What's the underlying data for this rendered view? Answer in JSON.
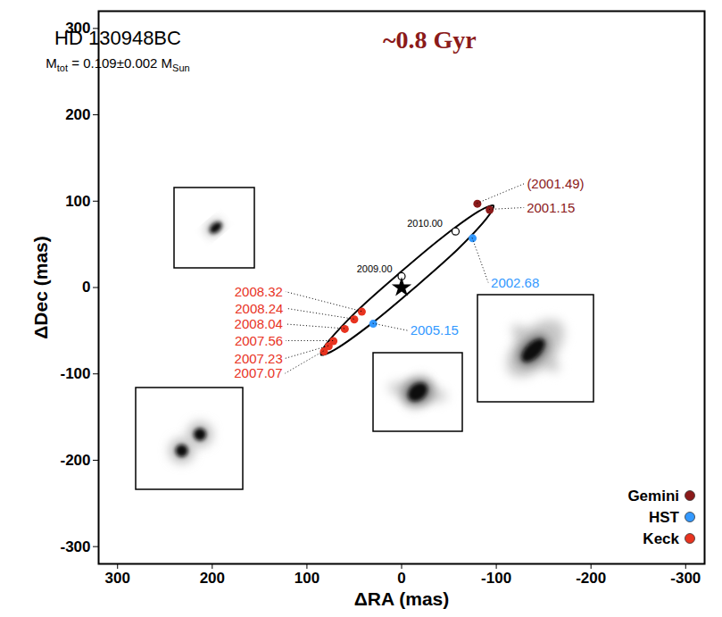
{
  "chart_data": {
    "type": "scatter",
    "title": "HD 130948BC",
    "subtitle": [
      "M",
      "tot",
      " = 0.109±0.002 M",
      "Sun"
    ],
    "annotation": {
      "text": "~0.8 Gyr",
      "color": "#8b1a1a"
    },
    "x_label": "ΔRA (mas)",
    "y_label": "ΔDec (mas)",
    "xlim": [
      320,
      -320
    ],
    "ylim": [
      -320,
      320
    ],
    "xticks": [
      300,
      200,
      100,
      0,
      -100,
      -200,
      -300
    ],
    "yticks": [
      300,
      200,
      100,
      0,
      -100,
      -200,
      -300
    ],
    "legend": "bottom-right",
    "series": [
      {
        "name": "Gemini",
        "color": "#8b1a1a",
        "marker": "circle",
        "x": [
          -80,
          -93
        ],
        "y": [
          97,
          90
        ],
        "labels": [
          "(2001.49)",
          "2001.15"
        ]
      },
      {
        "name": "HST",
        "color": "#3399ff",
        "marker": "circle",
        "x": [
          -75,
          30
        ],
        "y": [
          57,
          -42
        ],
        "labels": [
          "2002.68",
          "2005.15"
        ]
      },
      {
        "name": "Keck",
        "color": "#e8331f",
        "marker": "circle",
        "x": [
          82,
          77,
          72,
          60,
          50,
          42
        ],
        "y": [
          -74,
          -68,
          -62,
          -48,
          -37,
          -28
        ],
        "labels": [
          "2007.07",
          "2007.23",
          "2007.56",
          "2008.04",
          "2008.24",
          "2008.32"
        ]
      }
    ],
    "orbit": {
      "type": "line",
      "color": "#000000",
      "x": [
        -97,
        -92,
        -81,
        -44,
        2,
        47,
        77,
        84,
        85,
        80,
        69,
        32,
        -14,
        -59,
        -89,
        -96
      ],
      "y": [
        95,
        94,
        88,
        59,
        17,
        -27,
        -62,
        -73,
        -78,
        -77,
        -71,
        -42,
        0,
        44,
        79,
        90
      ]
    },
    "epochs": {
      "marker": "open circle",
      "x": [
        -57,
        0
      ],
      "y": [
        65,
        13
      ],
      "labels": [
        "2010.00",
        "2009.00"
      ]
    },
    "primary": {
      "marker": "star",
      "x": [
        0
      ],
      "y": [
        0
      ]
    }
  }
}
